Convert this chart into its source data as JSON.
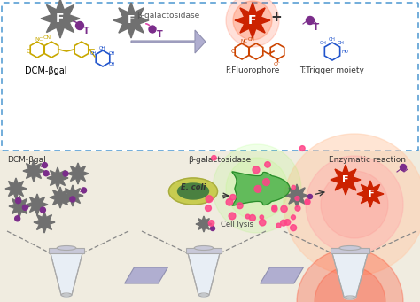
{
  "bg_color": "#ffffff",
  "box_border_color": "#5a9fd4",
  "gray_star_color": "#707070",
  "red_star_color": "#cc2200",
  "purple_dot_color": "#7b2d8b",
  "pink_dot_color": "#ff4488",
  "arrow_color": "#a0a0c0",
  "tube_yellow": "#f0f000",
  "tube_red": "#dd1100",
  "ecoli_outer": "#c8cc50",
  "ecoli_inner": "#4a8040",
  "enzyme_green": "#3aaa3a",
  "label_dcm": "DCM-βgal",
  "label_f": "F:Fluorophore",
  "label_t": "T:Trigger moiety",
  "label_ecoli": "E. coli",
  "label_celllysis": "Cell lysis",
  "label_beta": "β-galactosidase",
  "label_enzyme": "Enzymatic reaction",
  "label_dcm2": "DCM-βgal",
  "label_betagal_top": "β-galactosidase"
}
